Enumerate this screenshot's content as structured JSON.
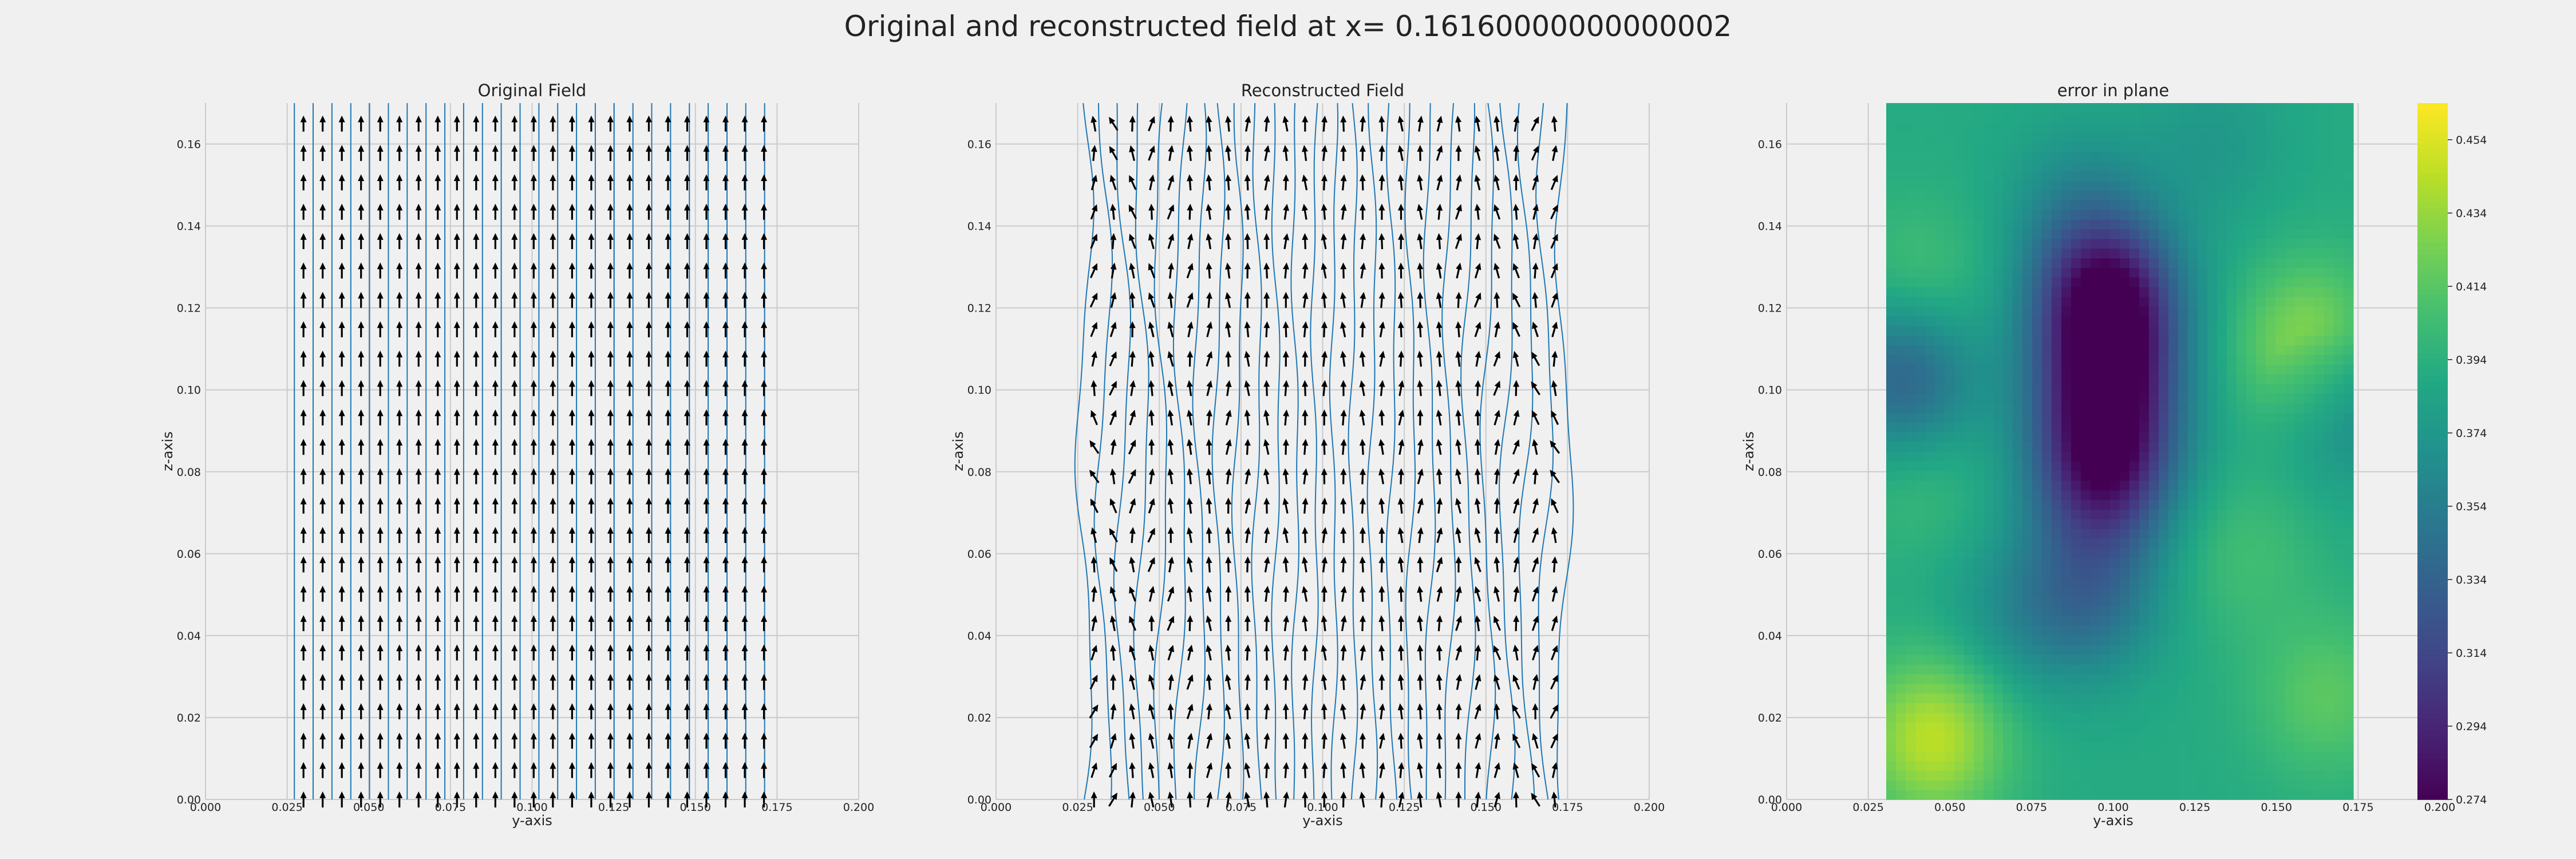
{
  "figure": {
    "suptitle": "Original and reconstructed field at x= 0.16160000000000002"
  },
  "colors": {
    "figure_background": "#f0f0f0",
    "axes_background": "#f0f0f0",
    "grid": "#cbcbcb",
    "arrow": "#000000",
    "streamline": "#1f77b4"
  },
  "chart_data": [
    {
      "type": "quiver",
      "title": "Original Field",
      "xlabel": "y-axis",
      "ylabel": "z-axis",
      "xlim": [
        0.0,
        0.2
      ],
      "ylim": [
        0.0,
        0.17
      ],
      "xticks": [
        "0.000",
        "0.025",
        "0.050",
        "0.075",
        "0.100",
        "0.125",
        "0.150",
        "0.175",
        "0.200"
      ],
      "yticks": [
        "0.00",
        "0.02",
        "0.04",
        "0.06",
        "0.08",
        "0.10",
        "0.12",
        "0.14",
        "0.16"
      ],
      "grid": true,
      "arrow_grid": {
        "y_range": [
          0.03,
          0.171
        ],
        "y_count": 25,
        "z_range": [
          0.0,
          0.165
        ],
        "z_count": 24,
        "direction": "+z",
        "uniform": true
      },
      "streamlines": {
        "count": 26,
        "y_range": [
          0.0272,
          0.1712
        ],
        "z_range": [
          0.0,
          0.17
        ],
        "direction": "vertical"
      }
    },
    {
      "type": "quiver",
      "title": "Reconstructed Field",
      "xlabel": "y-axis",
      "ylabel": "z-axis",
      "xlim": [
        0.0,
        0.2
      ],
      "ylim": [
        0.0,
        0.17
      ],
      "xticks": [
        "0.000",
        "0.025",
        "0.050",
        "0.075",
        "0.100",
        "0.125",
        "0.150",
        "0.175",
        "0.200"
      ],
      "yticks": [
        "0.00",
        "0.02",
        "0.04",
        "0.06",
        "0.08",
        "0.10",
        "0.12",
        "0.14",
        "0.16"
      ],
      "grid": true,
      "arrow_grid": {
        "y_range": [
          0.03,
          0.171
        ],
        "y_count": 25,
        "z_range": [
          0.0,
          0.165
        ],
        "z_count": 24,
        "direction": "+z (mostly), with tilted arrows near left and right edges",
        "uniform": false
      },
      "streamlines": {
        "count": 26,
        "y_range": [
          0.027,
          0.174
        ],
        "z_range": [
          0.0,
          0.17
        ],
        "direction": "vertical, wavy"
      }
    },
    {
      "type": "heatmap",
      "title": "error in plane",
      "xlabel": "y-axis",
      "ylabel": "z-axis",
      "xlim": [
        0.0,
        0.2
      ],
      "ylim": [
        0.0,
        0.17
      ],
      "xticks": [
        "0.000",
        "0.025",
        "0.050",
        "0.075",
        "0.100",
        "0.125",
        "0.150",
        "0.175",
        "0.200"
      ],
      "yticks": [
        "0.00",
        "0.02",
        "0.04",
        "0.06",
        "0.08",
        "0.10",
        "0.12",
        "0.14",
        "0.16"
      ],
      "grid": true,
      "colormap": "viridis",
      "data_extent": {
        "y": [
          0.0305,
          0.1735
        ],
        "z": [
          0.0,
          0.17
        ]
      },
      "value_range": [
        0.274,
        0.464
      ],
      "colorbar_ticks": [
        "0.274",
        "0.294",
        "0.314",
        "0.334",
        "0.354",
        "0.374",
        "0.394",
        "0.414",
        "0.434",
        "0.454"
      ],
      "features": [
        {
          "y": 0.098,
          "z": 0.122,
          "value": 0.277
        },
        {
          "y": 0.097,
          "z": 0.08,
          "value": 0.3
        },
        {
          "y": 0.098,
          "z": 0.1,
          "value": 0.305
        },
        {
          "y": 0.093,
          "z": 0.05,
          "value": 0.345
        },
        {
          "y": 0.036,
          "z": 0.103,
          "value": 0.33
        },
        {
          "y": 0.17,
          "z": 0.1,
          "value": 0.34
        },
        {
          "y": 0.162,
          "z": 0.109,
          "value": 0.455
        },
        {
          "y": 0.045,
          "z": 0.015,
          "value": 0.445
        },
        {
          "y": 0.04,
          "z": 0.125,
          "value": 0.41
        },
        {
          "y": 0.04,
          "z": 0.08,
          "value": 0.405
        },
        {
          "y": 0.165,
          "z": 0.025,
          "value": 0.415
        },
        {
          "y": 0.14,
          "z": 0.06,
          "value": 0.405
        },
        {
          "y": 0.07,
          "z": 0.045,
          "value": 0.37
        },
        {
          "y": 0.09,
          "z": 0.145,
          "value": 0.365
        },
        {
          "y": 0.13,
          "z": 0.16,
          "value": 0.375
        },
        {
          "y": 0.15,
          "z": 0.09,
          "value": 0.39
        }
      ]
    }
  ]
}
